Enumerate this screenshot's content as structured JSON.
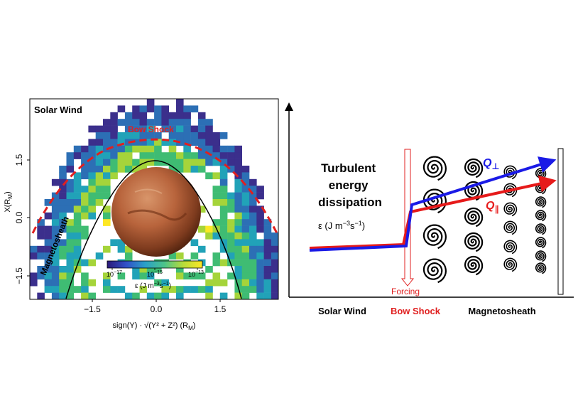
{
  "left_panel": {
    "solar_wind_label": "Solar Wind",
    "bow_shock_label": "Bow Shock",
    "magnetosheath_label": "Magnetosheath",
    "y_axis_label": "X(R",
    "y_axis_label_sub": "M",
    "y_axis_label_end": ")",
    "x_axis_label": "sign(Y) · √(Y² + Z²) (R",
    "x_axis_label_sub": "M",
    "x_axis_label_end": ")",
    "x_ticks": [
      "−1.5",
      "0.0",
      "1.5"
    ],
    "y_ticks": [
      "1.5",
      "0.0",
      "−1.5"
    ],
    "colorbar_ticks": [
      "10",
      "10",
      "10"
    ],
    "colorbar_exponents": [
      "−17",
      "−15",
      "−13"
    ],
    "colorbar_label": "ε (J m",
    "colorbar_label_exp1": "−3",
    "colorbar_label_mid": "s",
    "colorbar_label_exp2": "−1",
    "colorbar_label_end": ")",
    "colors": {
      "bow_shock": "#e02020",
      "colormap": [
        "#440154",
        "#3b2f8c",
        "#2c6fb5",
        "#21a2b8",
        "#3fbc73",
        "#a5d43a",
        "#fde725"
      ]
    }
  },
  "right_panel": {
    "title_lines": [
      "Turbulent",
      "energy",
      "dissipation"
    ],
    "epsilon_label": "ε (J m",
    "epsilon_exp1": "−3",
    "epsilon_mid": "s",
    "epsilon_exp2": "−1",
    "epsilon_end": ")",
    "q_perp_label": "Q",
    "q_perp_sub": "⊥",
    "q_par_label": "Q",
    "q_par_sub": "∥",
    "forcing_label": "Forcing",
    "bottom_labels": {
      "solar_wind": "Solar Wind",
      "bow_shock": "Bow Shock",
      "magnetosheath": "Magnetosheath"
    },
    "colors": {
      "q_perp": "#1a1ae6",
      "q_par": "#e61a1a",
      "forcing": "#e02020",
      "bow_shock_text": "#e02020"
    }
  }
}
